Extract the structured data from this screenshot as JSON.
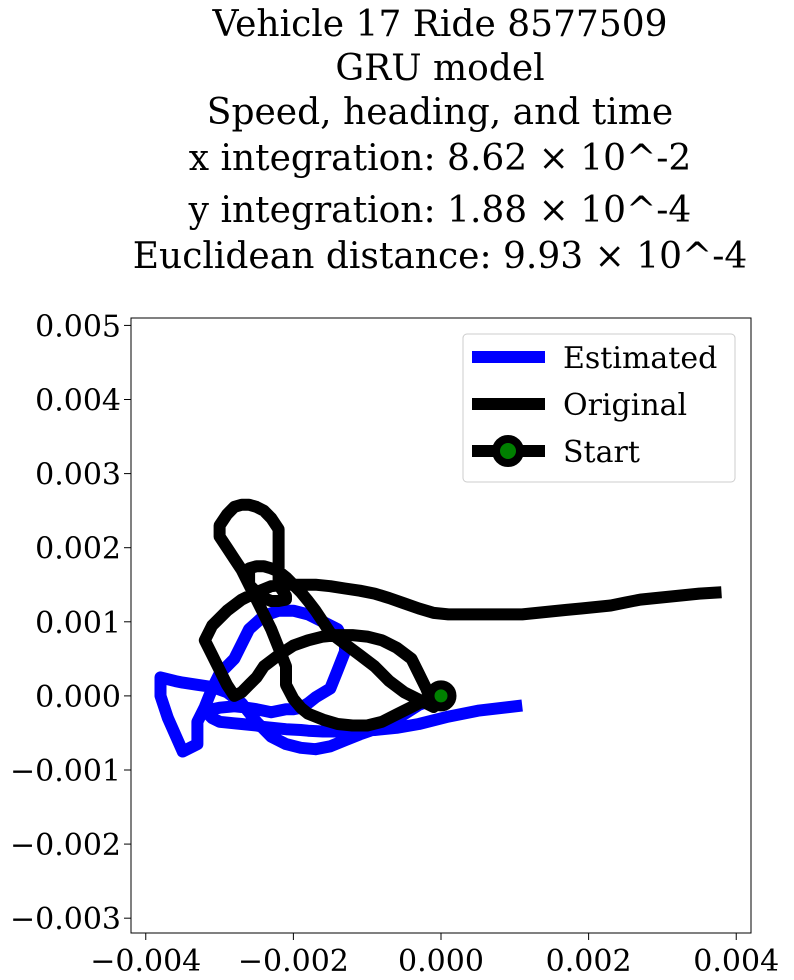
{
  "title_lines": [
    "Vehicle 17 Ride 8577509",
    "GRU model",
    "Speed, heading, and time",
    "x integration: 8.62 × 10^-2",
    "y integration: 1.88 × 10^-4",
    "Euclidean distance: 9.93 × 10^-4"
  ],
  "chart_data": {
    "type": "line",
    "title": "Vehicle 17 Ride 8577509 / GRU model / Speed, heading, and time / x integration: 8.62 × 10^-2 / y integration: 1.88 × 10^-4 / Euclidean distance: 9.93 × 10^-4",
    "xlabel": "",
    "ylabel": "",
    "xlim": [
      -0.0042,
      0.0042
    ],
    "ylim": [
      -0.0032,
      0.0051
    ],
    "xticks": [
      "−0.004",
      "−0.002",
      "0.000",
      "0.002",
      "0.004"
    ],
    "xtick_values": [
      -0.004,
      -0.002,
      0.0,
      0.002,
      0.004
    ],
    "yticks": [
      "−0.003",
      "−0.002",
      "−0.001",
      "0.000",
      "0.001",
      "0.002",
      "0.003",
      "0.004",
      "0.005"
    ],
    "ytick_values": [
      -0.003,
      -0.002,
      -0.001,
      0.0,
      0.001,
      0.002,
      0.003,
      0.004,
      0.005
    ],
    "grid": false,
    "legend_position": "upper-right",
    "series": [
      {
        "name": "Estimated",
        "color": "#0000ff",
        "x": [
          0.0011,
          0.0005,
          0.0001,
          -0.0003,
          -0.0006,
          -0.0009,
          -0.0012,
          -0.0014,
          -0.0016,
          -0.0018,
          -0.0019,
          -0.0021,
          -0.0022,
          -0.0024,
          -0.0025,
          -0.0027,
          -0.0028,
          -0.003,
          -0.0031,
          -0.0032,
          -0.003,
          -0.0028,
          -0.0027,
          -0.0025,
          -0.0024,
          -0.0023,
          -0.0021,
          -0.002,
          -0.0019,
          -0.0018,
          -0.0017,
          -0.0015,
          -0.0014,
          -0.0013,
          -0.0013,
          -0.0014,
          -0.0016,
          -0.0018,
          -0.002,
          -0.0022,
          -0.0024,
          -0.0026,
          -0.0027,
          -0.0028,
          -0.003,
          -0.0031,
          -0.0032,
          -0.0033,
          -0.0033,
          -0.0035,
          -0.0037,
          -0.0038,
          -0.0038,
          -0.0036,
          -0.0035,
          -0.0033,
          -0.0031,
          -0.0029,
          -0.0027,
          -0.0025,
          -0.0023,
          -0.0021,
          -0.0019,
          -0.0017,
          -0.0015,
          -0.0013,
          -0.0011,
          -0.0009,
          -0.0007,
          -0.0005,
          -0.0003,
          -0.0001,
          0.0
        ],
        "y": [
          -0.00013,
          -0.0002,
          -0.00028,
          -0.00038,
          -0.00043,
          -0.00046,
          -0.00047,
          -0.00048,
          -0.00048,
          -0.00047,
          -0.00046,
          -0.00045,
          -0.00044,
          -0.00042,
          -0.0004,
          -0.00038,
          -0.00037,
          -0.00035,
          -0.0003,
          -0.0002,
          -0.00016,
          -0.00014,
          -0.00015,
          -0.00018,
          -0.0002,
          -0.00022,
          -0.00018,
          -0.00018,
          -0.00016,
          -0.0001,
          -2e-05,
          0.0001,
          0.00035,
          0.0006,
          0.0007,
          0.0009,
          0.001,
          0.0011,
          0.00115,
          0.00115,
          0.00108,
          0.0009,
          0.0007,
          0.0005,
          0.0003,
          0.0001,
          -0.00015,
          -0.00035,
          -0.00065,
          -0.00075,
          -0.0003,
          0.0,
          0.00025,
          0.0002,
          0.00018,
          0.00015,
          0.00012,
          5e-05,
          -0.0001,
          -0.00035,
          -0.00055,
          -0.00065,
          -0.0007,
          -0.00072,
          -0.00068,
          -0.0006,
          -0.00052,
          -0.00045,
          -0.00035,
          -0.00025,
          -0.00012,
          -5e-05,
          -2e-05
        ]
      },
      {
        "name": "Original",
        "color": "#000000",
        "x": [
          0.0,
          -0.0002,
          -0.0004,
          -0.0006,
          -0.0008,
          -0.001,
          -0.0012,
          -0.0014,
          -0.0016,
          -0.0018,
          -0.0019,
          -0.002,
          -0.0021,
          -0.0021,
          -0.0022,
          -0.0023,
          -0.0024,
          -0.0025,
          -0.0026,
          -0.0027,
          -0.0028,
          -0.0029,
          -0.003,
          -0.003,
          -0.0029,
          -0.0028,
          -0.0027,
          -0.0026,
          -0.0025,
          -0.0024,
          -0.0023,
          -0.0022,
          -0.0022,
          -0.0022,
          -0.0022,
          -0.0022,
          -0.0021,
          -0.0021,
          -0.0022,
          -0.0023,
          -0.0024,
          -0.0025,
          -0.0026,
          -0.0026,
          -0.0026,
          -0.0026,
          -0.0025,
          -0.0024,
          -0.0023,
          -0.0022,
          -0.0021,
          -0.002,
          -0.0019,
          -0.0018,
          -0.0017,
          -0.0016,
          -0.0015,
          -0.0013,
          -0.0011,
          -0.0009,
          -0.0007,
          -0.0005,
          -0.0003,
          -0.0002,
          -0.0001,
          -0.0002,
          -0.0003,
          -0.0004,
          -0.0006,
          -0.0008,
          -0.001,
          -0.0012,
          -0.0014,
          -0.0016,
          -0.0018,
          -0.002,
          -0.0022,
          -0.0024,
          -0.0025,
          -0.0026,
          -0.0027,
          -0.0028,
          -0.0029,
          -0.003,
          -0.0031,
          -0.0032,
          -0.0031,
          -0.0029,
          -0.0027,
          -0.0025,
          -0.0023,
          -0.0021,
          -0.0019,
          -0.0017,
          -0.0015,
          -0.0013,
          -0.0011,
          -0.0009,
          -0.0007,
          -0.0005,
          -0.0003,
          -0.0001,
          0.0001,
          0.0003,
          0.0005,
          0.0007,
          0.0009,
          0.0011,
          0.0013,
          0.0015,
          0.0017,
          0.0019,
          0.0021,
          0.0023,
          0.0025,
          0.0027,
          0.0029,
          0.0031,
          0.0033,
          0.0035,
          0.0038
        ],
        "y": [
          0.0,
          -5e-05,
          -0.00015,
          -0.00025,
          -0.00035,
          -0.0004,
          -0.0004,
          -0.00038,
          -0.00032,
          -0.00024,
          -0.00016,
          -4e-05,
          0.00015,
          0.0004,
          0.00065,
          0.0009,
          0.0011,
          0.0013,
          0.0015,
          0.0017,
          0.00185,
          0.002,
          0.00215,
          0.0023,
          0.00245,
          0.00255,
          0.00258,
          0.00258,
          0.00255,
          0.0025,
          0.0024,
          0.00225,
          0.00205,
          0.0018,
          0.0016,
          0.0015,
          0.00135,
          0.0013,
          0.00128,
          0.00128,
          0.00132,
          0.0014,
          0.0015,
          0.0016,
          0.00168,
          0.00172,
          0.00175,
          0.00175,
          0.00172,
          0.00168,
          0.0016,
          0.0015,
          0.0014,
          0.00128,
          0.00115,
          0.001,
          0.00085,
          0.0007,
          0.00055,
          0.0004,
          0.0002,
          5e-05,
          -5e-05,
          -0.0001,
          -0.00015,
          0.0001,
          0.0003,
          0.0005,
          0.00065,
          0.00075,
          0.0008,
          0.00082,
          0.00082,
          0.0008,
          0.00075,
          0.00068,
          0.00055,
          0.0004,
          0.00025,
          0.00015,
          5e-05,
          0.0,
          0.00015,
          0.00035,
          0.00055,
          0.00075,
          0.00095,
          0.00115,
          0.0013,
          0.0014,
          0.00148,
          0.0015,
          0.0015,
          0.0015,
          0.00148,
          0.00145,
          0.00142,
          0.00138,
          0.00132,
          0.00125,
          0.00118,
          0.00112,
          0.0011,
          0.0011,
          0.0011,
          0.0011,
          0.0011,
          0.0011,
          0.00112,
          0.00114,
          0.00116,
          0.00118,
          0.0012,
          0.00122,
          0.00126,
          0.0013,
          0.00132,
          0.00134,
          0.00136,
          0.00138,
          0.0014
        ]
      }
    ],
    "start_marker": {
      "name": "Start",
      "x": 0.0,
      "y": 0.0,
      "edge_color": "#000000",
      "face_color": "#008000"
    }
  }
}
